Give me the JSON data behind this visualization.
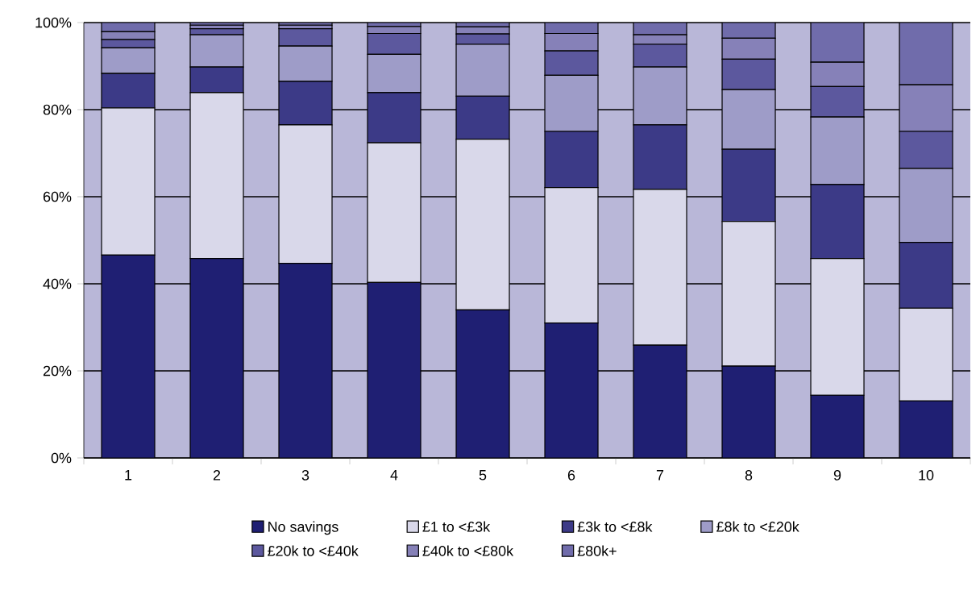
{
  "chart_data": {
    "type": "bar",
    "stacked": true,
    "grid": "y",
    "legend": "bottom",
    "categories": [
      "1",
      "2",
      "3",
      "4",
      "5",
      "6",
      "7",
      "8",
      "9",
      "10"
    ],
    "ylim": [
      0,
      100
    ],
    "yticks": [
      {
        "value": 0,
        "label": "0%"
      },
      {
        "value": 20,
        "label": "20%"
      },
      {
        "value": 40,
        "label": "40%"
      },
      {
        "value": 60,
        "label": "60%"
      },
      {
        "value": 80,
        "label": "80%"
      },
      {
        "value": 100,
        "label": "100%"
      }
    ],
    "series": [
      {
        "name": "No savings",
        "color": "#1f1f73",
        "values": [
          46.6,
          45.8,
          44.7,
          40.3,
          34.0,
          31.0,
          25.9,
          21.1,
          14.4,
          13.1
        ]
      },
      {
        "name": "£1 to <£3k",
        "color": "#d9d8ea",
        "values": [
          33.8,
          38.1,
          31.8,
          32.1,
          39.2,
          31.1,
          35.8,
          33.2,
          31.4,
          21.3
        ]
      },
      {
        "name": "£3k to <£8k",
        "color": "#3c3a87",
        "values": [
          7.9,
          5.9,
          10.0,
          11.5,
          9.9,
          12.9,
          14.8,
          16.6,
          17.0,
          15.1
        ]
      },
      {
        "name": "£8k to <£20k",
        "color": "#9e9cc8",
        "values": [
          5.9,
          7.4,
          8.1,
          8.8,
          11.9,
          12.9,
          13.3,
          13.7,
          15.5,
          17.0
        ]
      },
      {
        "name": "£20k to <£40k",
        "color": "#5c589e",
        "values": [
          1.9,
          1.4,
          4.0,
          4.8,
          2.4,
          5.6,
          5.2,
          7.0,
          7.0,
          8.5
        ]
      },
      {
        "name": "£40k to <£80k",
        "color": "#8681b8",
        "values": [
          1.8,
          0.8,
          0.8,
          1.6,
          1.6,
          4.0,
          2.2,
          4.8,
          5.6,
          10.7
        ]
      },
      {
        "name": "£80k+",
        "color": "#706cab",
        "values": [
          2.1,
          0.6,
          0.6,
          0.9,
          1.0,
          2.5,
          2.8,
          3.6,
          9.1,
          14.3
        ]
      }
    ]
  }
}
